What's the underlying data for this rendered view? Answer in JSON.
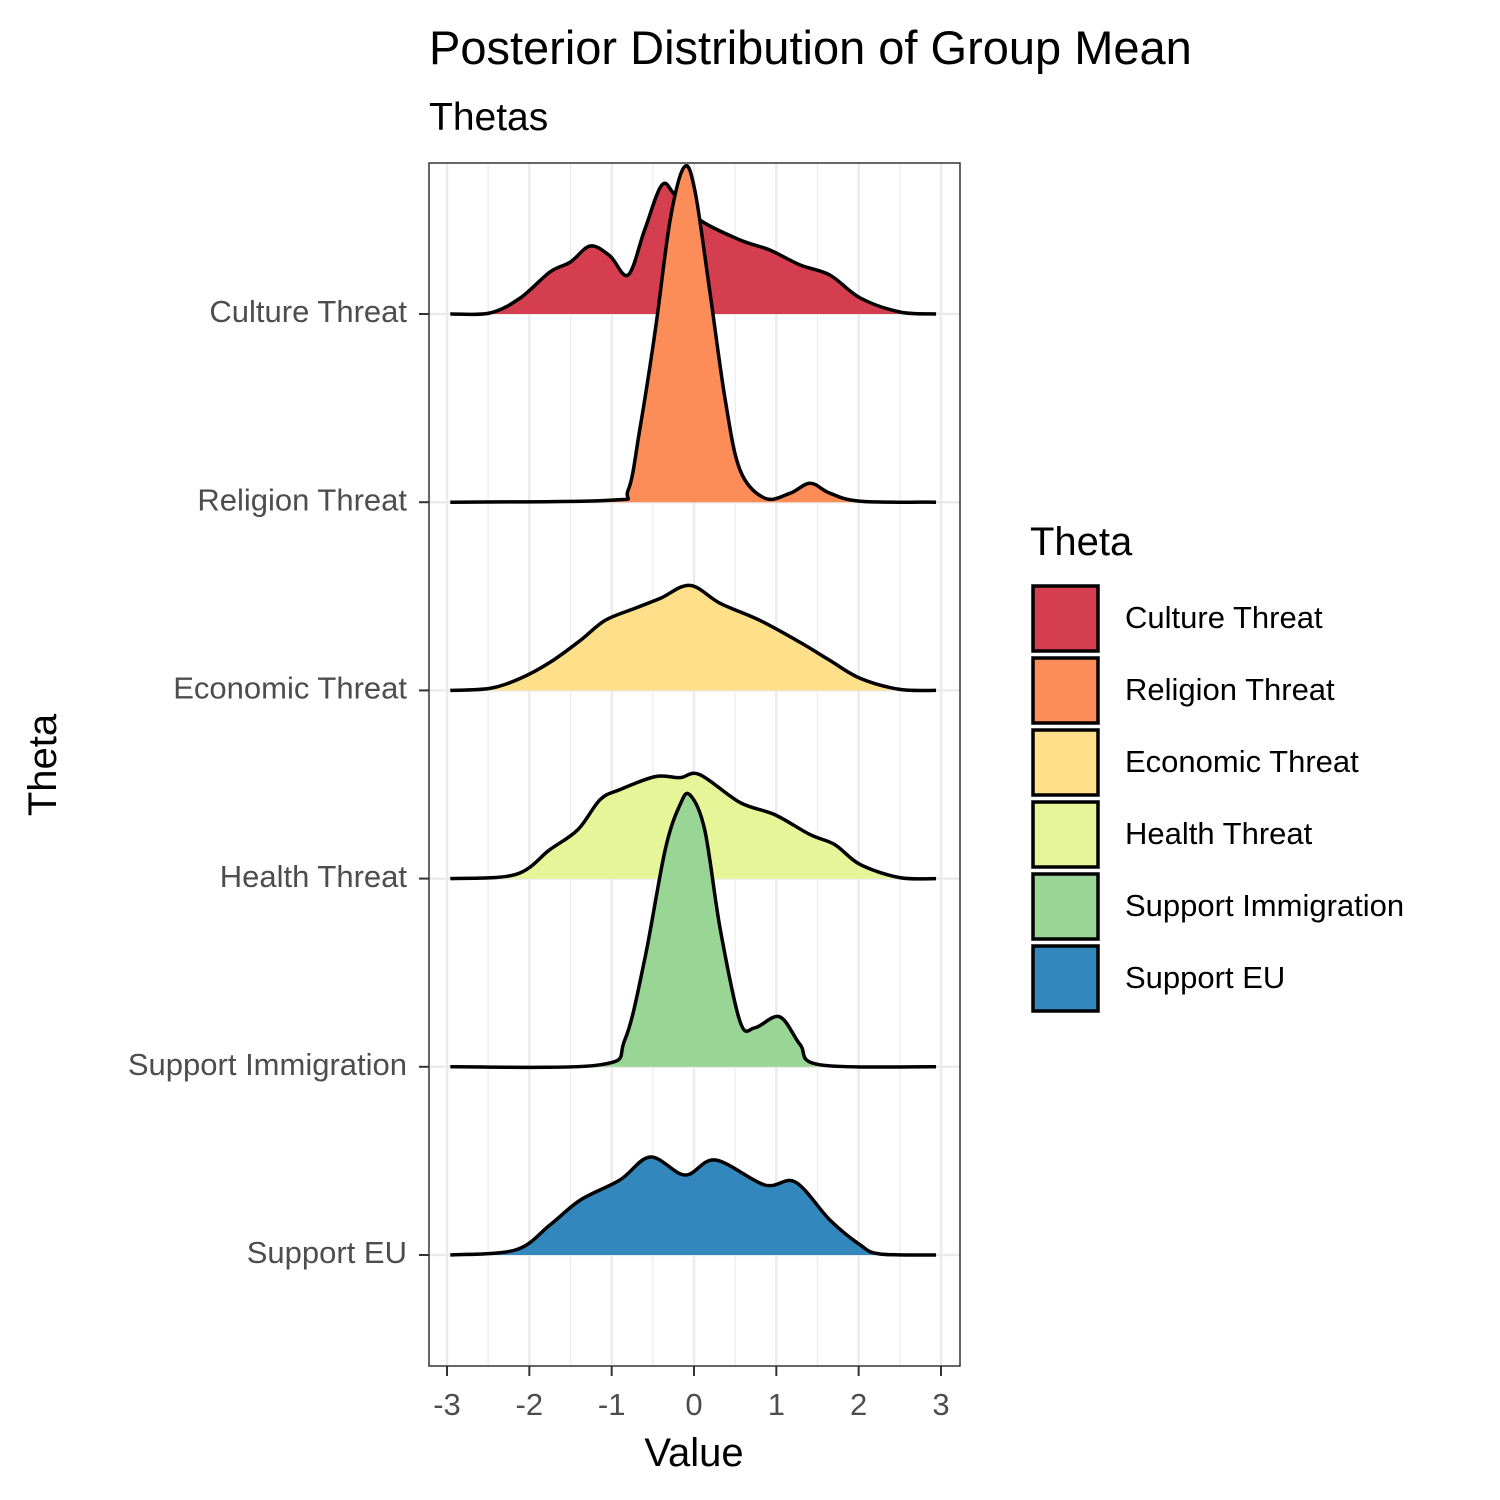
{
  "chart_data": {
    "type": "ridgeline",
    "title": "Posterior Distribution of Group Mean",
    "subtitle": "Thetas",
    "xlabel": "Value",
    "ylabel": "Theta",
    "xlim": [
      -3.2,
      3.2
    ],
    "x_ticks": [
      "-3",
      "-2",
      "-1",
      "0",
      "1",
      "2",
      "3"
    ],
    "grid": true,
    "legend": {
      "title": "Theta",
      "position": "right"
    },
    "series": [
      {
        "name": "Culture Threat",
        "color": "#D53E4F",
        "points": [
          [
            -2.96,
            0
          ],
          [
            -2.48,
            0.01
          ],
          [
            -2.11,
            0.16
          ],
          [
            -1.75,
            0.42
          ],
          [
            -1.5,
            0.52
          ],
          [
            -1.26,
            0.68
          ],
          [
            -1.02,
            0.58
          ],
          [
            -0.8,
            0.39
          ],
          [
            -0.6,
            0.84
          ],
          [
            -0.39,
            1.29
          ],
          [
            -0.23,
            1.19
          ],
          [
            0.07,
            0.94
          ],
          [
            0.56,
            0.74
          ],
          [
            0.92,
            0.64
          ],
          [
            1.29,
            0.49
          ],
          [
            1.65,
            0.39
          ],
          [
            2.02,
            0.16
          ],
          [
            2.5,
            0.02
          ],
          [
            2.94,
            0
          ]
        ]
      },
      {
        "name": "Religion Threat",
        "color": "#FC8D59",
        "points": [
          [
            -2.96,
            0
          ],
          [
            -1.02,
            0.02
          ],
          [
            -0.8,
            0.12
          ],
          [
            -0.66,
            0.72
          ],
          [
            -0.47,
            1.72
          ],
          [
            -0.29,
            2.82
          ],
          [
            -0.12,
            3.35
          ],
          [
            0.01,
            3.12
          ],
          [
            0.19,
            2.12
          ],
          [
            0.38,
            1.02
          ],
          [
            0.56,
            0.32
          ],
          [
            0.86,
            0.04
          ],
          [
            1.17,
            0.09
          ],
          [
            1.41,
            0.19
          ],
          [
            1.65,
            0.09
          ],
          [
            2.02,
            0.01
          ],
          [
            2.94,
            0
          ]
        ]
      },
      {
        "name": "Economic Threat",
        "color": "#FEE08B",
        "points": [
          [
            -2.96,
            0
          ],
          [
            -2.48,
            0.02
          ],
          [
            -2.11,
            0.12
          ],
          [
            -1.75,
            0.28
          ],
          [
            -1.38,
            0.5
          ],
          [
            -1.08,
            0.7
          ],
          [
            -0.72,
            0.82
          ],
          [
            -0.41,
            0.92
          ],
          [
            -0.05,
            1.05
          ],
          [
            0.32,
            0.87
          ],
          [
            0.8,
            0.7
          ],
          [
            1.29,
            0.48
          ],
          [
            1.65,
            0.3
          ],
          [
            2.02,
            0.12
          ],
          [
            2.5,
            0.01
          ],
          [
            2.94,
            0
          ]
        ]
      },
      {
        "name": "Health Threat",
        "color": "#E6F598",
        "points": [
          [
            -2.96,
            0
          ],
          [
            -2.17,
            0.04
          ],
          [
            -1.75,
            0.29
          ],
          [
            -1.41,
            0.49
          ],
          [
            -1.14,
            0.79
          ],
          [
            -0.9,
            0.89
          ],
          [
            -0.47,
            1.02
          ],
          [
            -0.17,
            1.01
          ],
          [
            0.07,
            1.04
          ],
          [
            0.56,
            0.76
          ],
          [
            0.98,
            0.64
          ],
          [
            1.41,
            0.44
          ],
          [
            1.71,
            0.34
          ],
          [
            2.02,
            0.14
          ],
          [
            2.5,
            0.01
          ],
          [
            2.94,
            0
          ]
        ]
      },
      {
        "name": "Support Immigration",
        "color": "#99D594",
        "points": [
          [
            -2.96,
            0
          ],
          [
            -1.14,
            0.02
          ],
          [
            -0.84,
            0.27
          ],
          [
            -0.6,
            1.07
          ],
          [
            -0.35,
            2.17
          ],
          [
            -0.17,
            2.62
          ],
          [
            -0.05,
            2.72
          ],
          [
            0.13,
            2.37
          ],
          [
            0.32,
            1.37
          ],
          [
            0.56,
            0.45
          ],
          [
            0.74,
            0.39
          ],
          [
            1.04,
            0.5
          ],
          [
            1.29,
            0.22
          ],
          [
            1.53,
            0.02
          ],
          [
            2.94,
            0
          ]
        ]
      },
      {
        "name": "Support EU",
        "color": "#3288BD",
        "points": [
          [
            -2.96,
            0
          ],
          [
            -2.17,
            0.05
          ],
          [
            -1.75,
            0.3
          ],
          [
            -1.38,
            0.55
          ],
          [
            -0.9,
            0.75
          ],
          [
            -0.53,
            0.98
          ],
          [
            -0.11,
            0.8
          ],
          [
            0.26,
            0.95
          ],
          [
            0.86,
            0.7
          ],
          [
            1.23,
            0.73
          ],
          [
            1.65,
            0.35
          ],
          [
            2.02,
            0.1
          ],
          [
            2.26,
            0.01
          ],
          [
            2.94,
            0
          ]
        ]
      }
    ]
  }
}
